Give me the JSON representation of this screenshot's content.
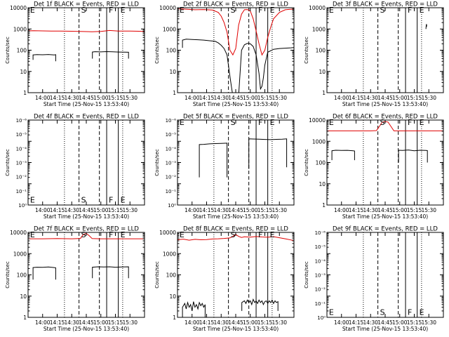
{
  "figure": {
    "xlabel": "Start Time (25-Nov-15 13:53:40)",
    "ylabel": "Counts/sec",
    "xticks": [
      "14:00",
      "14:15",
      "14:30",
      "14:45",
      "15:00",
      "15:15",
      "15:30"
    ],
    "xlim_minutes": [
      -5,
      35
    ],
    "ytick_labels_plain": [
      "1",
      "10",
      "100",
      "1000",
      "10000"
    ],
    "ytick_labels_small": [
      "10⁰",
      "10⁻¹",
      "10⁻²",
      "10⁻³",
      "10⁻⁴",
      "10⁻⁵",
      "10⁻⁶"
    ],
    "colors": {
      "events": "#000000",
      "lld": "#e00000",
      "axes": "#000000"
    },
    "markers": [
      {
        "label": "E",
        "x": -4.3,
        "style": "none"
      },
      {
        "label": "S",
        "x": 12.5,
        "style": "dashed"
      },
      {
        "label": "F",
        "x": 22.0,
        "style": "solid"
      },
      {
        "label": "E",
        "x": 26.0,
        "style": "solid"
      }
    ],
    "extra_dashed_x": [
      -4.3,
      19.5
    ],
    "dotted_x": [
      7.5,
      27.5
    ]
  },
  "chart_data": [
    {
      "type": "line",
      "title": "Det 1f BLACK = Events, RED = LLD",
      "yscale": "log",
      "ylim": [
        1,
        10000
      ],
      "ytick_format": "plain",
      "series": [
        {
          "color": "#000000",
          "x": [
            -3.3,
            -3.3,
            -2,
            0,
            2,
            4,
            4.5,
            4.5
          ],
          "y": [
            35,
            60,
            62,
            61,
            63,
            60,
            62,
            30
          ]
        },
        {
          "color": "#000000",
          "x": [
            17.1,
            17.1,
            18,
            20,
            22,
            24,
            26,
            29.5,
            29.5
          ],
          "y": [
            40,
            82,
            85,
            83,
            86,
            84,
            82,
            80,
            40
          ]
        },
        {
          "color": "#e00000",
          "x": [
            -5,
            -3,
            0,
            3,
            6,
            10,
            14,
            17,
            20,
            23,
            26,
            30,
            33,
            35
          ],
          "y": [
            820,
            830,
            810,
            790,
            800,
            780,
            760,
            740,
            770,
            850,
            800,
            790,
            780,
            760
          ]
        }
      ],
      "letters_y": 8000
    },
    {
      "type": "line",
      "title": "Det 2f BLACK = Events, RED = LLD",
      "yscale": "log",
      "ylim": [
        1,
        10000
      ],
      "ytick_format": "plain",
      "series": [
        {
          "color": "#000000",
          "x": [
            -3.3,
            -3.3,
            -2,
            0,
            2,
            4,
            6,
            8,
            9,
            10,
            11,
            12,
            13,
            13.5,
            14,
            15,
            16,
            17,
            18,
            19,
            20,
            21,
            22,
            23,
            23.5,
            24,
            24.5,
            25,
            26,
            28,
            30,
            32,
            34,
            35
          ],
          "y": [
            130,
            300,
            330,
            320,
            310,
            300,
            280,
            260,
            220,
            170,
            120,
            60,
            6,
            2,
            0.7,
            0.7,
            0.7,
            100,
            180,
            210,
            200,
            150,
            60,
            8,
            1.5,
            2,
            5,
            20,
            80,
            110,
            120,
            125,
            130,
            135
          ]
        },
        {
          "color": "#e00000",
          "x": [
            -5,
            -2,
            1,
            4,
            7,
            9,
            10,
            11,
            12,
            13,
            14,
            15,
            16,
            17,
            18,
            19,
            20,
            21,
            22,
            23,
            24,
            25,
            26,
            27,
            28,
            30,
            32,
            34,
            35
          ],
          "y": [
            9000,
            8500,
            8000,
            8200,
            7800,
            6000,
            4000,
            2000,
            700,
            100,
            60,
            120,
            1500,
            5000,
            8000,
            8200,
            7000,
            3000,
            800,
            200,
            60,
            100,
            400,
            1200,
            3000,
            6000,
            8000,
            8500,
            8800
          ]
        }
      ],
      "letters_y": 8000
    },
    {
      "type": "line",
      "title": "Det 3f BLACK = Events, RED = LLD",
      "yscale": "log",
      "ylim": [
        1,
        10000
      ],
      "ytick_format": "plain",
      "series": [
        {
          "color": "#000000",
          "x": [
            29,
            29.1,
            29.2,
            29.3
          ],
          "y": [
            1000,
            1400,
            1700,
            1300
          ]
        }
      ],
      "letters_y": 8000
    },
    {
      "type": "line",
      "title": "Det 4f BLACK = Events, RED = LLD",
      "yscale": "log",
      "ylim": [
        1,
        10000
      ],
      "ytick_format": "small",
      "series": [],
      "letters_y": 1.8
    },
    {
      "type": "line",
      "title": "Det 5f BLACK = Events, RED = LLD",
      "yscale": "log",
      "ylim": [
        1,
        10000
      ],
      "ytick_format": "small",
      "series": [
        {
          "color": "#000000",
          "x": [
            2.5,
            2.5,
            4,
            6,
            8,
            10,
            12,
            12,
            12
          ],
          "y": [
            20,
            700,
            720,
            760,
            780,
            800,
            820,
            790,
            20
          ]
        },
        {
          "color": "#000000",
          "x": [
            19.5,
            19.5,
            21,
            23,
            25,
            27,
            29,
            31,
            32.5,
            32.5
          ],
          "y": [
            50,
            1300,
            1280,
            1250,
            1220,
            1200,
            1230,
            1260,
            1300,
            60
          ]
        }
      ],
      "letters_y": 8000
    },
    {
      "type": "line",
      "title": "Det 6f BLACK = Events, RED = LLD",
      "yscale": "log",
      "ylim": [
        1,
        10000
      ],
      "ytick_format": "plain",
      "series": [
        {
          "color": "#000000",
          "x": [
            -3.3,
            -3.3,
            -2,
            0,
            2,
            4,
            4.5,
            4.5
          ],
          "y": [
            130,
            360,
            380,
            370,
            375,
            360,
            350,
            130
          ]
        },
        {
          "color": "#000000",
          "x": [
            19.6,
            19.6,
            21,
            23,
            25,
            27,
            29,
            29.5,
            29.5
          ],
          "y": [
            100,
            380,
            370,
            390,
            360,
            380,
            370,
            365,
            100
          ]
        },
        {
          "color": "#e00000",
          "x": [
            -5,
            0,
            5,
            10,
            12,
            13,
            14,
            15,
            16,
            17,
            18,
            20,
            25,
            30,
            35
          ],
          "y": [
            3100,
            3100,
            3100,
            3100,
            3200,
            5000,
            8000,
            8500,
            8000,
            5000,
            3100,
            3100,
            3100,
            3100,
            3100
          ]
        }
      ],
      "letters_y": 8000
    },
    {
      "type": "line",
      "title": "Det 7f BLACK = Events, RED = LLD",
      "yscale": "log",
      "ylim": [
        1,
        10000
      ],
      "ytick_format": "plain",
      "series": [
        {
          "color": "#000000",
          "x": [
            -3.3,
            -3.3,
            -2,
            0,
            2,
            4,
            4.5,
            4.5
          ],
          "y": [
            60,
            220,
            230,
            225,
            235,
            220,
            215,
            60
          ]
        },
        {
          "color": "#000000",
          "x": [
            17.1,
            17.1,
            19,
            21,
            23,
            25,
            27,
            29.5,
            29.5
          ],
          "y": [
            70,
            230,
            240,
            235,
            240,
            230,
            235,
            240,
            70
          ]
        },
        {
          "color": "#e00000",
          "x": [
            -5,
            0,
            5,
            10,
            13,
            14,
            15,
            16,
            17,
            20,
            25,
            30,
            35
          ],
          "y": [
            5000,
            5000,
            5100,
            5000,
            5200,
            8000,
            9000,
            7000,
            5100,
            5000,
            5000,
            5000,
            5000
          ]
        }
      ],
      "letters_y": 8000
    },
    {
      "type": "line",
      "title": "Det 8f BLACK = Events, RED = LLD",
      "yscale": "log",
      "ylim": [
        1,
        10000
      ],
      "ytick_format": "plain",
      "series": [
        {
          "color": "#000000",
          "x": [
            -3.3,
            -3.3,
            -2.5,
            -2,
            -1.5,
            -1,
            -0.5,
            0,
            0.5,
            1,
            1.5,
            2,
            2.5,
            3,
            3.5,
            4,
            4.5,
            4.5
          ],
          "y": [
            1,
            3,
            4.5,
            2.5,
            5,
            3,
            4,
            2,
            5.5,
            3,
            4,
            2.5,
            5,
            3.5,
            4.5,
            3,
            4,
            1
          ]
        },
        {
          "color": "#000000",
          "x": [
            17.1,
            17.1,
            18,
            18.5,
            19,
            19.5,
            20,
            20.5,
            21,
            21.5,
            22,
            22.5,
            23,
            23.5,
            24,
            24.5,
            25,
            25.5,
            26,
            26.5,
            27,
            27.5,
            28,
            28.5,
            29,
            29.5,
            29.5
          ],
          "y": [
            2,
            5,
            6,
            4.5,
            6.5,
            5,
            6,
            4,
            7,
            5,
            6,
            4.5,
            6.5,
            5,
            6,
            4,
            5.5,
            6,
            4.5,
            6,
            5,
            6.5,
            4.5,
            6,
            5,
            5.5,
            2
          ]
        },
        {
          "color": "#e00000",
          "x": [
            -5,
            -3,
            -1,
            1,
            3,
            5,
            7,
            9,
            11,
            13,
            14,
            15,
            16,
            17,
            18,
            20,
            22,
            24,
            26,
            28,
            30,
            32,
            34,
            35
          ],
          "y": [
            4500,
            4800,
            4300,
            4700,
            4500,
            4600,
            4900,
            5000,
            5200,
            5500,
            6500,
            8000,
            6500,
            5800,
            6200,
            6000,
            6400,
            6100,
            5900,
            6300,
            5600,
            5000,
            4400,
            4000
          ]
        }
      ],
      "letters_y": 8000
    },
    {
      "type": "line",
      "title": "Det 9f BLACK = Events, RED = LLD",
      "yscale": "log",
      "ylim": [
        1,
        10000
      ],
      "ytick_format": "small",
      "series": [],
      "letters_y": 1.8
    }
  ]
}
